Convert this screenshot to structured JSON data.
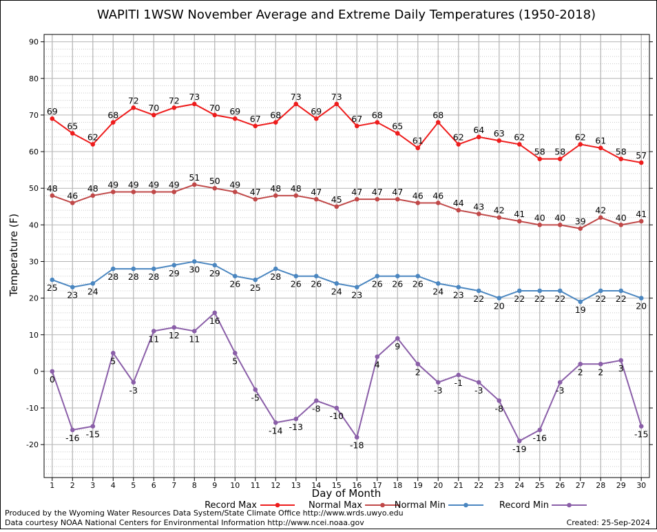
{
  "chart_data": {
    "type": "line",
    "title": "WAPITI 1WSW November Average and Extreme Daily Temperatures (1950-2018)",
    "xlabel": "Day of Month",
    "ylabel": "Temperature (F)",
    "xlim": [
      0.6,
      30.4
    ],
    "ylim": [
      -29,
      92
    ],
    "y_ticks": [
      -20,
      -10,
      0,
      10,
      20,
      30,
      40,
      50,
      60,
      70,
      80,
      90
    ],
    "x": [
      1,
      2,
      3,
      4,
      5,
      6,
      7,
      8,
      9,
      10,
      11,
      12,
      13,
      14,
      15,
      16,
      17,
      18,
      19,
      20,
      21,
      22,
      23,
      24,
      25,
      26,
      27,
      28,
      29,
      30
    ],
    "grid": true,
    "legend_position": "bottom",
    "series": [
      {
        "name": "Record Max",
        "color": "#ee1c1c",
        "values": [
          69,
          65,
          62,
          68,
          72,
          70,
          72,
          73,
          70,
          69,
          67,
          68,
          73,
          69,
          73,
          67,
          68,
          65,
          61,
          68,
          62,
          64,
          63,
          62,
          58,
          58,
          62,
          61,
          58,
          57
        ]
      },
      {
        "name": "Normal Max",
        "color": "#c04848",
        "values": [
          48,
          46,
          48,
          49,
          49,
          49,
          49,
          51,
          50,
          49,
          47,
          48,
          48,
          47,
          45,
          47,
          47,
          47,
          46,
          46,
          44,
          43,
          42,
          41,
          40,
          40,
          39,
          42,
          40,
          41
        ]
      },
      {
        "name": "Normal Min",
        "color": "#4a86c0",
        "values": [
          25,
          23,
          24,
          28,
          28,
          28,
          29,
          30,
          29,
          26,
          25,
          28,
          26,
          26,
          24,
          23,
          26,
          26,
          26,
          24,
          23,
          22,
          20,
          22,
          22,
          22,
          19,
          22,
          22,
          20
        ]
      },
      {
        "name": "Record Min",
        "color": "#8a5ea8",
        "values": [
          0,
          -16,
          -15,
          5,
          -3,
          11,
          12,
          11,
          16,
          5,
          -5,
          -14,
          -13,
          -8,
          -10,
          -18,
          4,
          9,
          2,
          -3,
          -1,
          -3,
          -8,
          -19,
          -16,
          -3,
          2,
          2,
          3,
          -15
        ]
      }
    ]
  },
  "footer": {
    "line1": "Produced by the Wyoming Water Resources Data System/State Climate Office http://www.wrds.uwyo.edu",
    "line2": "Data courtesy NOAA National Centers for Environmental Information http://www.ncei.noaa.gov",
    "created": "Created:  25-Sep-2024"
  }
}
